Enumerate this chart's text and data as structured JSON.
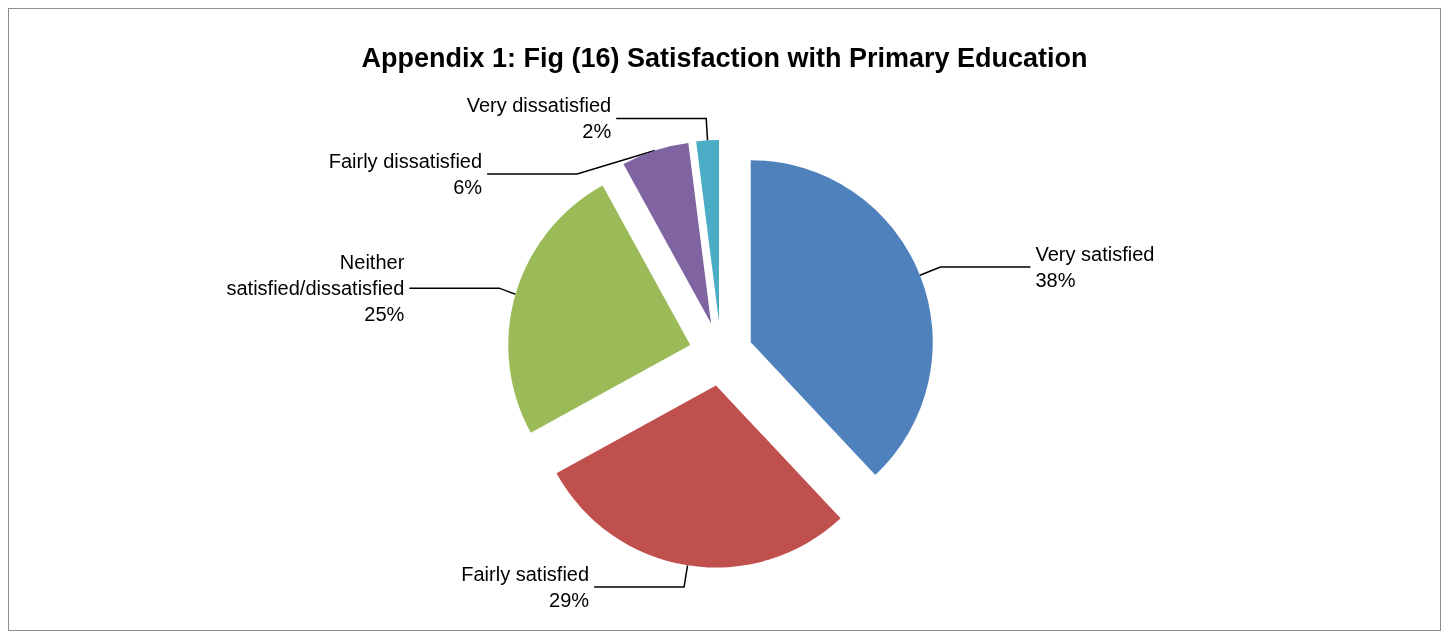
{
  "chart_data": {
    "type": "pie",
    "title": "Appendix 1: Fig (16) Satisfaction with Primary Education",
    "categories": [
      "Very satisfied",
      "Fairly satisfied",
      "Neither satisfied/dissatisfied",
      "Fairly dissatisfied",
      "Very dissatisfied"
    ],
    "values": [
      38,
      29,
      25,
      6,
      2
    ],
    "value_labels": [
      "38%",
      "29%",
      "25%",
      "6%",
      "2%"
    ],
    "colors": [
      "#4f81bd",
      "#c0504d",
      "#9bbb59",
      "#8064a2",
      "#4bacc6"
    ],
    "legend": false
  }
}
